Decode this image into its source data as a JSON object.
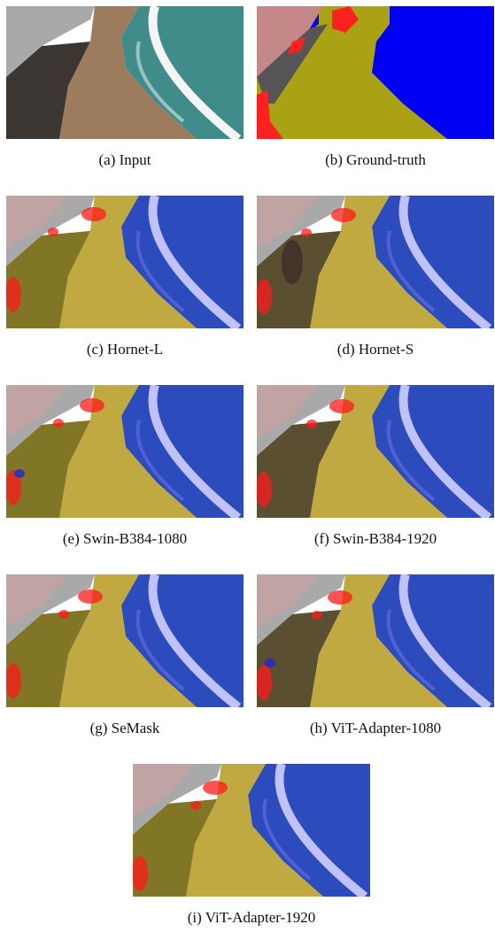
{
  "figure": {
    "panels": [
      {
        "caption": "(a) Input"
      },
      {
        "caption": "(b) Ground-truth"
      },
      {
        "caption": "(c) Hornet-L"
      },
      {
        "caption": "(d) Hornet-S"
      },
      {
        "caption": "(e) Swin-B384-1080"
      },
      {
        "caption": "(f) Swin-B384-1920"
      },
      {
        "caption": "(g) SeMask"
      },
      {
        "caption": "(h) ViT-Adapter-1080"
      },
      {
        "caption": "(i) ViT-Adapter-1920"
      }
    ]
  }
}
